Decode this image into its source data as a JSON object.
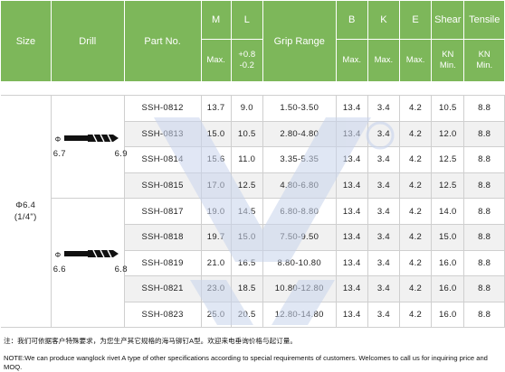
{
  "header": {
    "size": "Size",
    "drill": "Drill",
    "part_no": "Part No.",
    "m": "M",
    "l": "L",
    "grip_range": "Grip Range",
    "b": "B",
    "k": "K",
    "e": "E",
    "shear": "Shear",
    "tensile": "Tensile",
    "m_sub": "Max.",
    "l_sub_1": "+0.8",
    "l_sub_2": "-0.2",
    "b_sub": "Max.",
    "k_sub": "Max.",
    "e_sub": "Max.",
    "shear_sub_1": "KN",
    "shear_sub_2": "Min.",
    "tensile_sub_1": "KN",
    "tensile_sub_2": "Min."
  },
  "size_label_1": "Φ6.4",
  "size_label_2": "(1/4\")",
  "drills": [
    {
      "phi": "Φ",
      "left": "6.7",
      "right": "6.9"
    },
    {
      "phi": "Φ",
      "left": "6.6",
      "right": "6.8"
    }
  ],
  "rows": [
    {
      "part": "SSH-0812",
      "m": "13.7",
      "l": "9.0",
      "grip": "1.50-3.50",
      "b": "13.4",
      "k": "3.4",
      "e": "4.2",
      "shear": "10.5",
      "tensile": "8.8"
    },
    {
      "part": "SSH-0813",
      "m": "15.0",
      "l": "10.5",
      "grip": "2.80-4.80",
      "b": "13.4",
      "k": "3.4",
      "e": "4.2",
      "shear": "12.0",
      "tensile": "8.8"
    },
    {
      "part": "SSH-0814",
      "m": "15.6",
      "l": "11.0",
      "grip": "3.35-5.35",
      "b": "13.4",
      "k": "3.4",
      "e": "4.2",
      "shear": "12.5",
      "tensile": "8.8"
    },
    {
      "part": "SSH-0815",
      "m": "17.0",
      "l": "12.5",
      "grip": "4.80-6.80",
      "b": "13.4",
      "k": "3.4",
      "e": "4.2",
      "shear": "12.5",
      "tensile": "8.8"
    },
    {
      "part": "SSH-0817",
      "m": "19.0",
      "l": "14.5",
      "grip": "6.80-8.80",
      "b": "13.4",
      "k": "3.4",
      "e": "4.2",
      "shear": "14.0",
      "tensile": "8.8"
    },
    {
      "part": "SSH-0818",
      "m": "19.7",
      "l": "15.0",
      "grip": "7.50-9.50",
      "b": "13.4",
      "k": "3.4",
      "e": "4.2",
      "shear": "15.0",
      "tensile": "8.8"
    },
    {
      "part": "SSH-0819",
      "m": "21.0",
      "l": "16.5",
      "grip": "8.80-10.80",
      "b": "13.4",
      "k": "3.4",
      "e": "4.2",
      "shear": "16.0",
      "tensile": "8.8"
    },
    {
      "part": "SSH-0821",
      "m": "23.0",
      "l": "18.5",
      "grip": "10.80-12.80",
      "b": "13.4",
      "k": "3.4",
      "e": "4.2",
      "shear": "16.0",
      "tensile": "8.8"
    },
    {
      "part": "SSH-0823",
      "m": "25.0",
      "l": "20.5",
      "grip": "12.80-14.80",
      "b": "13.4",
      "k": "3.4",
      "e": "4.2",
      "shear": "16.0",
      "tensile": "8.8"
    }
  ],
  "note_cn": "注：我们可依据客户特殊要求，为您生产其它规格的海马铆钉A型。欢迎来电垂询价格与起订量。",
  "note_en": "NOTE:We can produce wanglock rivet A type of other specifications according to special requirements of customers. Welcomes to call us for inquiring price and MOQ.",
  "colors": {
    "header_bg": "#7db75a",
    "alt_row": "#f1f1f1",
    "watermark": "#c8d4ec"
  }
}
